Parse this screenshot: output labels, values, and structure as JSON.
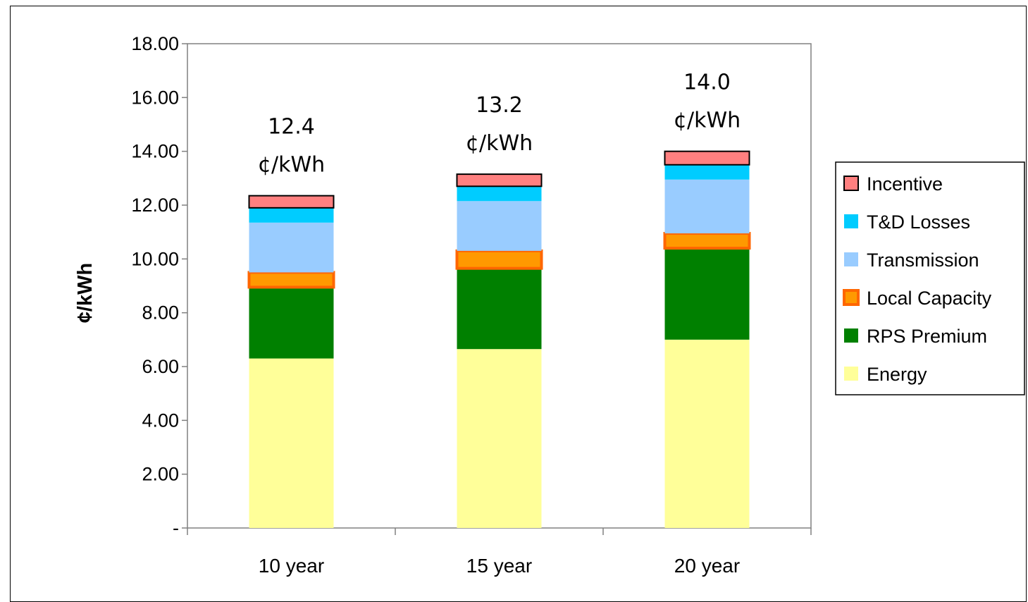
{
  "chart_data": {
    "type": "bar",
    "stacked": true,
    "categories": [
      "10 year",
      "15 year",
      "20 year"
    ],
    "ylabel": "¢/kWh",
    "xlabel": "",
    "ylim": [
      0,
      18
    ],
    "yticks": [
      0,
      2,
      4,
      6,
      8,
      10,
      12,
      14,
      16,
      18
    ],
    "ytick_labels": [
      "-",
      "2.00",
      "4.00",
      "6.00",
      "8.00",
      "10.00",
      "12.00",
      "14.00",
      "16.00",
      "18.00"
    ],
    "grid": false,
    "legend_position": "right",
    "series": [
      {
        "name": "Energy",
        "color": "#ffff99",
        "values": [
          6.3,
          6.65,
          7.0
        ]
      },
      {
        "name": "RPS Premium",
        "color": "#008000",
        "values": [
          2.65,
          3.0,
          3.4
        ]
      },
      {
        "name": "Local Capacity",
        "color": "#ff9900",
        "border": "#ff6600",
        "values": [
          0.55,
          0.65,
          0.55
        ]
      },
      {
        "name": "Transmission",
        "color": "#99ccff",
        "values": [
          1.85,
          1.85,
          2.0
        ]
      },
      {
        "name": "T&D Losses",
        "color": "#00ccff",
        "values": [
          0.55,
          0.55,
          0.55
        ]
      },
      {
        "name": "Incentive",
        "color": "#ff8080",
        "border": "#000000",
        "values": [
          0.45,
          0.45,
          0.5
        ]
      }
    ],
    "totals": [
      {
        "value": "12.4",
        "unit": "¢/kWh"
      },
      {
        "value": "13.2",
        "unit": "¢/kWh"
      },
      {
        "value": "14.0",
        "unit": "¢/kWh"
      }
    ]
  }
}
